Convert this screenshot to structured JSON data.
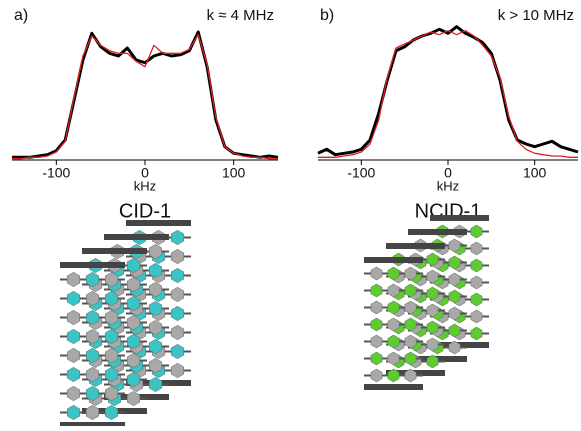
{
  "chart_data": [
    {
      "type": "line",
      "panel": "a)",
      "annotation": "k ≈ 4 MHz",
      "caption": "CID-1",
      "xlabel": "kHz",
      "xlim": [
        -150,
        150
      ],
      "xticks": [
        -100,
        0,
        100
      ],
      "ylim": [
        0,
        1.05
      ],
      "x": [
        -150,
        -140,
        -130,
        -120,
        -110,
        -100,
        -90,
        -80,
        -70,
        -60,
        -50,
        -40,
        -30,
        -20,
        -10,
        0,
        10,
        20,
        30,
        40,
        50,
        60,
        70,
        80,
        90,
        100,
        110,
        120,
        130,
        140,
        150
      ],
      "series": [
        {
          "color": "#000000",
          "values": [
            0.02,
            0.02,
            0.02,
            0.03,
            0.04,
            0.07,
            0.15,
            0.45,
            0.75,
            0.95,
            0.85,
            0.8,
            0.78,
            0.84,
            0.75,
            0.73,
            0.78,
            0.8,
            0.78,
            0.79,
            0.82,
            0.96,
            0.7,
            0.3,
            0.1,
            0.05,
            0.04,
            0.03,
            0.02,
            0.03,
            0.02
          ]
        },
        {
          "color": "#e02020",
          "values": [
            0.01,
            0.01,
            0.02,
            0.02,
            0.03,
            0.06,
            0.14,
            0.47,
            0.78,
            0.93,
            0.86,
            0.82,
            0.8,
            0.8,
            0.74,
            0.7,
            0.86,
            0.8,
            0.8,
            0.8,
            0.83,
            0.94,
            0.72,
            0.32,
            0.1,
            0.05,
            0.03,
            0.02,
            0.02,
            0.01,
            0.01
          ]
        }
      ]
    },
    {
      "type": "line",
      "panel": "b)",
      "annotation": "k > 10 MHz",
      "caption": "NCID-1",
      "xlabel": "kHz",
      "xlim": [
        -150,
        150
      ],
      "xticks": [
        -100,
        0,
        100
      ],
      "ylim": [
        0,
        1.05
      ],
      "x": [
        -150,
        -140,
        -130,
        -120,
        -110,
        -100,
        -90,
        -80,
        -70,
        -60,
        -50,
        -40,
        -30,
        -20,
        -10,
        0,
        10,
        20,
        30,
        40,
        50,
        60,
        70,
        80,
        90,
        100,
        110,
        120,
        130,
        140,
        150
      ],
      "series": [
        {
          "color": "#000000",
          "values": [
            0.05,
            0.08,
            0.04,
            0.05,
            0.06,
            0.08,
            0.15,
            0.35,
            0.6,
            0.82,
            0.85,
            0.9,
            0.93,
            0.95,
            0.98,
            0.95,
            1.0,
            0.95,
            0.92,
            0.88,
            0.8,
            0.6,
            0.3,
            0.15,
            0.12,
            0.1,
            0.12,
            0.14,
            0.1,
            0.08,
            0.06
          ]
        },
        {
          "color": "#e02020",
          "values": [
            0.02,
            0.02,
            0.02,
            0.03,
            0.04,
            0.06,
            0.12,
            0.3,
            0.62,
            0.84,
            0.87,
            0.9,
            0.93,
            0.96,
            0.94,
            0.97,
            0.94,
            0.97,
            0.93,
            0.86,
            0.78,
            0.62,
            0.33,
            0.14,
            0.08,
            0.05,
            0.04,
            0.03,
            0.03,
            0.02,
            0.02
          ]
        }
      ]
    }
  ]
}
